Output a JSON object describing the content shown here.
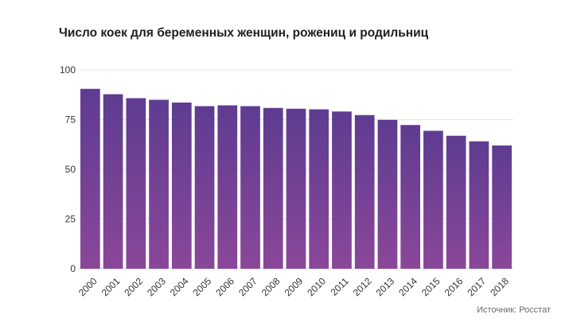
{
  "chart_data": {
    "type": "bar",
    "title": "Число коек для беременных женщин, рожениц и родильниц",
    "xlabel": "",
    "ylabel": "",
    "categories": [
      "2000",
      "2001",
      "2002",
      "2003",
      "2004",
      "2005",
      "2006",
      "2007",
      "2008",
      "2009",
      "2010",
      "2011",
      "2012",
      "2013",
      "2014",
      "2015",
      "2016",
      "2017",
      "2018"
    ],
    "values": [
      90.5,
      87.8,
      85.8,
      85.0,
      83.6,
      81.8,
      82.2,
      81.8,
      80.9,
      80.5,
      80.2,
      79.1,
      77.3,
      74.9,
      72.3,
      69.4,
      66.9,
      64.1,
      62.0
    ],
    "yticks": [
      0,
      25,
      50,
      75,
      100
    ],
    "ylim": [
      0,
      100
    ],
    "grid": true,
    "bar_color_top": "#5e3c91",
    "bar_color_bottom": "#8a4799"
  },
  "source": "Источник: Росстат"
}
